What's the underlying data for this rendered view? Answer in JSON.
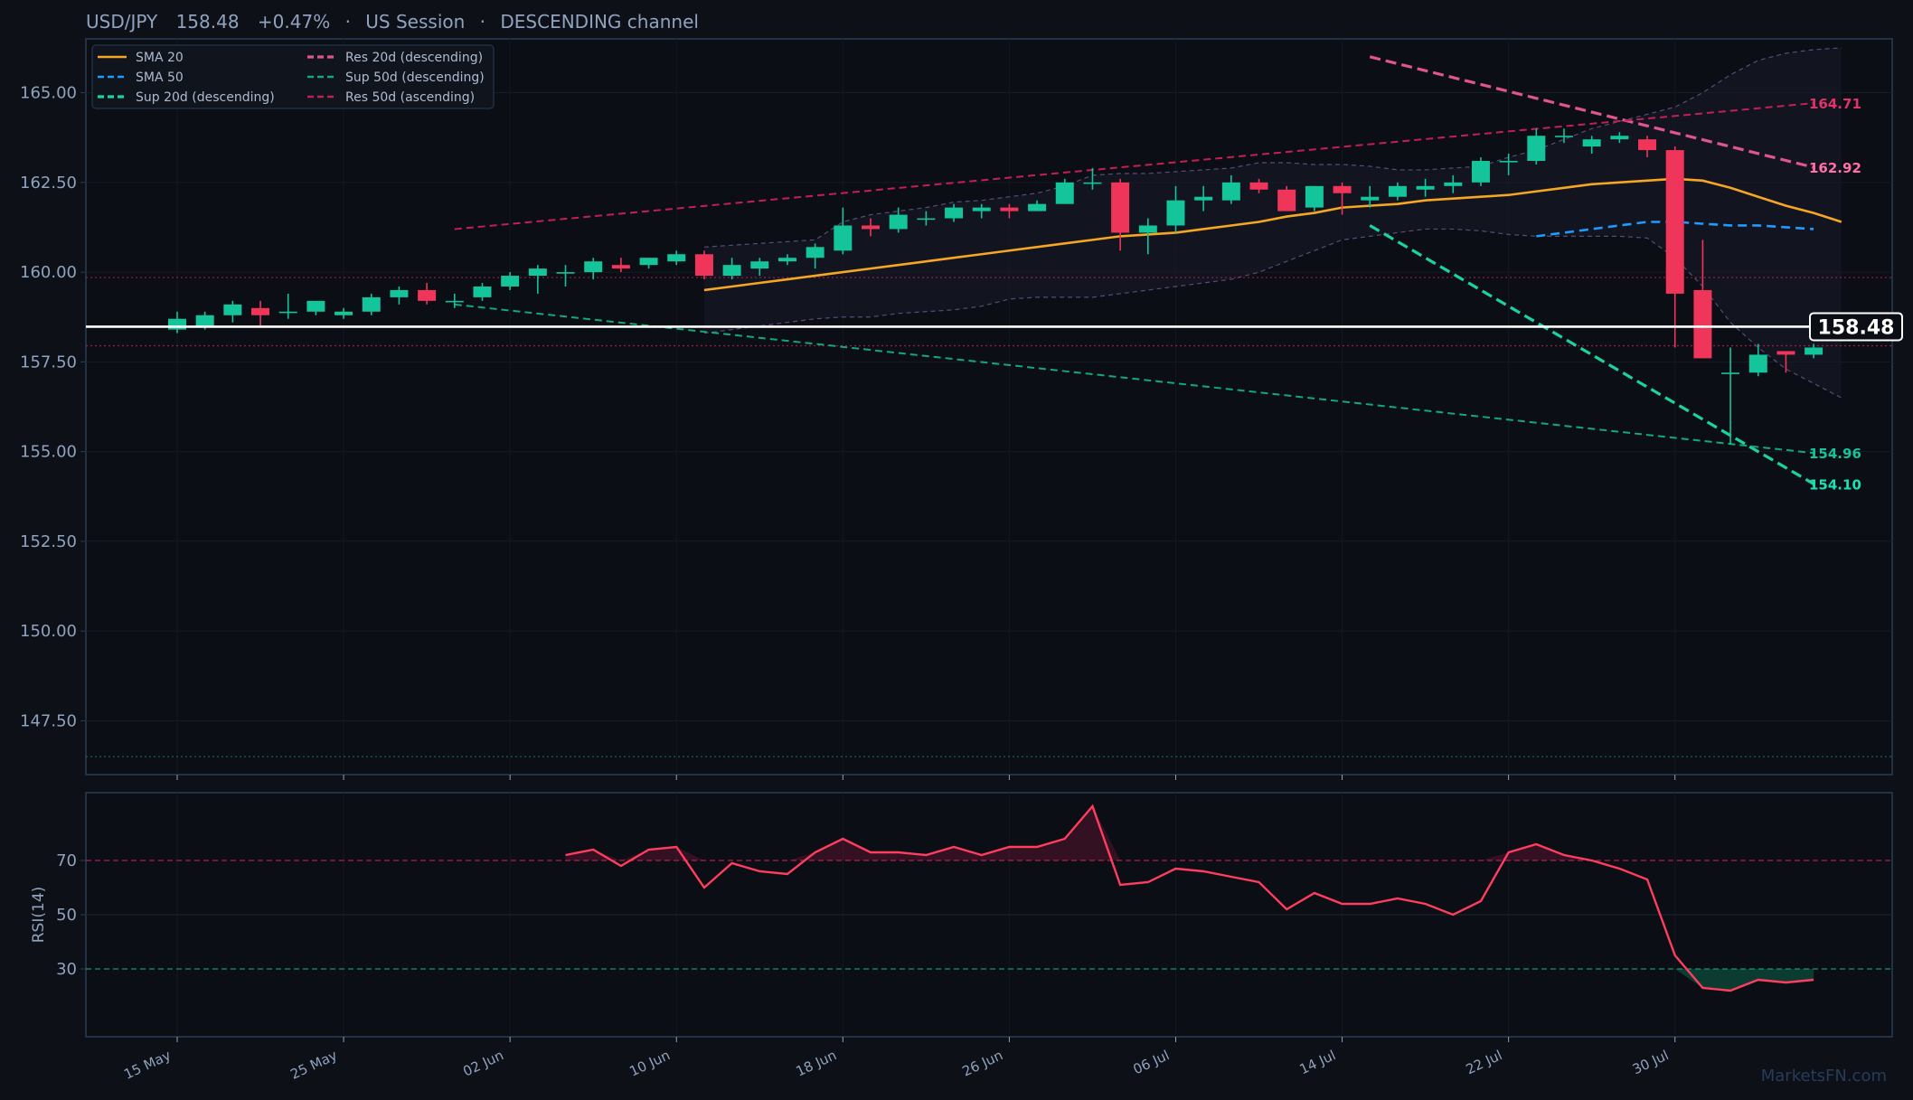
{
  "header": {
    "symbol": "USD/JPY",
    "price": "158.48",
    "change": "+0.47%",
    "session": "US Session",
    "channel": "DESCENDING channel",
    "separator": "·"
  },
  "watermark": "MarketsFN.com",
  "colors": {
    "background": "#0d1017",
    "panel": "#0b0e14",
    "axis": "#2a3d55",
    "text": "#8fa3bf",
    "up": "#14c49a",
    "down": "#f0355a",
    "sma20": "#f5a623",
    "sma50": "#1e9bff",
    "sup20": "#19d3a2",
    "res20": "#e0558f",
    "sup50": "#12a877",
    "res50": "#c41f55",
    "price_line": "#ffffff",
    "rsi": "#ff3d5e"
  },
  "chart_data": [
    {
      "type": "candlestick",
      "x_labels": [
        "15 May",
        "25 May",
        "02 Jun",
        "10 Jun",
        "18 Jun",
        "26 Jun",
        "06 Jul",
        "14 Jul",
        "22 Jul",
        "30 Jul"
      ],
      "x_label_index": [
        0,
        6,
        12,
        18,
        24,
        30,
        36,
        42,
        48,
        54
      ],
      "ylim": [
        146.0,
        166.5
      ],
      "yticks": [
        "147.50",
        "150.00",
        "152.50",
        "155.00",
        "157.50",
        "160.00",
        "162.50",
        "165.00"
      ],
      "candles": [
        {
          "o": 158.4,
          "h": 158.9,
          "l": 158.3,
          "c": 158.7
        },
        {
          "o": 158.5,
          "h": 158.9,
          "l": 158.4,
          "c": 158.8
        },
        {
          "o": 158.8,
          "h": 159.2,
          "l": 158.6,
          "c": 159.1
        },
        {
          "o": 159.0,
          "h": 159.2,
          "l": 158.5,
          "c": 158.8
        },
        {
          "o": 158.9,
          "h": 159.4,
          "l": 158.7,
          "c": 158.9
        },
        {
          "o": 158.9,
          "h": 159.2,
          "l": 158.8,
          "c": 159.2
        },
        {
          "o": 158.8,
          "h": 159.0,
          "l": 158.7,
          "c": 158.9
        },
        {
          "o": 158.9,
          "h": 159.4,
          "l": 158.8,
          "c": 159.3
        },
        {
          "o": 159.3,
          "h": 159.6,
          "l": 159.1,
          "c": 159.5
        },
        {
          "o": 159.5,
          "h": 159.7,
          "l": 159.1,
          "c": 159.2
        },
        {
          "o": 159.2,
          "h": 159.4,
          "l": 159.0,
          "c": 159.2
        },
        {
          "o": 159.3,
          "h": 159.7,
          "l": 159.2,
          "c": 159.6
        },
        {
          "o": 159.6,
          "h": 160.0,
          "l": 159.5,
          "c": 159.9
        },
        {
          "o": 159.9,
          "h": 160.2,
          "l": 159.4,
          "c": 160.1
        },
        {
          "o": 160.0,
          "h": 160.2,
          "l": 159.6,
          "c": 160.0
        },
        {
          "o": 160.0,
          "h": 160.4,
          "l": 159.8,
          "c": 160.3
        },
        {
          "o": 160.2,
          "h": 160.4,
          "l": 160.0,
          "c": 160.1
        },
        {
          "o": 160.2,
          "h": 160.4,
          "l": 160.1,
          "c": 160.4
        },
        {
          "o": 160.3,
          "h": 160.6,
          "l": 160.2,
          "c": 160.5
        },
        {
          "o": 160.5,
          "h": 160.6,
          "l": 159.8,
          "c": 159.9
        },
        {
          "o": 159.9,
          "h": 160.4,
          "l": 159.8,
          "c": 160.2
        },
        {
          "o": 160.1,
          "h": 160.4,
          "l": 159.9,
          "c": 160.3
        },
        {
          "o": 160.3,
          "h": 160.5,
          "l": 160.2,
          "c": 160.4
        },
        {
          "o": 160.4,
          "h": 160.8,
          "l": 160.1,
          "c": 160.7
        },
        {
          "o": 160.6,
          "h": 161.8,
          "l": 160.5,
          "c": 161.3
        },
        {
          "o": 161.3,
          "h": 161.5,
          "l": 161.0,
          "c": 161.2
        },
        {
          "o": 161.2,
          "h": 161.8,
          "l": 161.1,
          "c": 161.6
        },
        {
          "o": 161.5,
          "h": 161.7,
          "l": 161.3,
          "c": 161.5
        },
        {
          "o": 161.5,
          "h": 161.9,
          "l": 161.4,
          "c": 161.8
        },
        {
          "o": 161.7,
          "h": 161.9,
          "l": 161.5,
          "c": 161.8
        },
        {
          "o": 161.8,
          "h": 161.9,
          "l": 161.5,
          "c": 161.7
        },
        {
          "o": 161.7,
          "h": 162.0,
          "l": 161.7,
          "c": 161.9
        },
        {
          "o": 161.9,
          "h": 162.6,
          "l": 161.9,
          "c": 162.5
        },
        {
          "o": 162.5,
          "h": 162.9,
          "l": 162.3,
          "c": 162.5
        },
        {
          "o": 162.5,
          "h": 162.6,
          "l": 160.6,
          "c": 161.1
        },
        {
          "o": 161.1,
          "h": 161.5,
          "l": 160.5,
          "c": 161.3
        },
        {
          "o": 161.3,
          "h": 162.4,
          "l": 161.1,
          "c": 162.0
        },
        {
          "o": 162.0,
          "h": 162.4,
          "l": 161.7,
          "c": 162.1
        },
        {
          "o": 162.0,
          "h": 162.7,
          "l": 161.9,
          "c": 162.5
        },
        {
          "o": 162.5,
          "h": 162.6,
          "l": 162.2,
          "c": 162.3
        },
        {
          "o": 162.3,
          "h": 162.4,
          "l": 161.7,
          "c": 161.7
        },
        {
          "o": 161.8,
          "h": 162.4,
          "l": 161.7,
          "c": 162.4
        },
        {
          "o": 162.4,
          "h": 162.5,
          "l": 161.6,
          "c": 162.2
        },
        {
          "o": 162.0,
          "h": 162.4,
          "l": 161.8,
          "c": 162.1
        },
        {
          "o": 162.1,
          "h": 162.5,
          "l": 162.0,
          "c": 162.4
        },
        {
          "o": 162.3,
          "h": 162.6,
          "l": 162.1,
          "c": 162.4
        },
        {
          "o": 162.4,
          "h": 162.7,
          "l": 162.2,
          "c": 162.5
        },
        {
          "o": 162.5,
          "h": 163.2,
          "l": 162.4,
          "c": 163.1
        },
        {
          "o": 163.1,
          "h": 163.3,
          "l": 162.7,
          "c": 163.1
        },
        {
          "o": 163.1,
          "h": 164.0,
          "l": 163.0,
          "c": 163.8
        },
        {
          "o": 163.8,
          "h": 164.0,
          "l": 163.6,
          "c": 163.8
        },
        {
          "o": 163.5,
          "h": 163.8,
          "l": 163.3,
          "c": 163.7
        },
        {
          "o": 163.7,
          "h": 163.9,
          "l": 163.6,
          "c": 163.8
        },
        {
          "o": 163.7,
          "h": 163.8,
          "l": 163.2,
          "c": 163.4
        },
        {
          "o": 163.4,
          "h": 163.5,
          "l": 157.9,
          "c": 159.4
        },
        {
          "o": 159.5,
          "h": 160.9,
          "l": 157.6,
          "c": 157.6
        },
        {
          "o": 157.2,
          "h": 157.9,
          "l": 155.2,
          "c": 157.2
        },
        {
          "o": 157.2,
          "h": 158.0,
          "l": 157.1,
          "c": 157.7
        },
        {
          "o": 157.8,
          "h": 157.8,
          "l": 157.2,
          "c": 157.7
        },
        {
          "o": 157.7,
          "h": 158.0,
          "l": 157.6,
          "c": 157.9
        }
      ],
      "series": [
        {
          "name": "SMA 20",
          "style": "solid",
          "x_start": 19,
          "values": [
            159.5,
            159.6,
            159.7,
            159.8,
            159.9,
            160.0,
            160.1,
            160.2,
            160.3,
            160.4,
            160.5,
            160.6,
            160.7,
            160.8,
            160.9,
            161.0,
            161.05,
            161.1,
            161.2,
            161.3,
            161.4,
            161.55,
            161.65,
            161.8,
            161.85,
            161.9,
            162.0,
            162.05,
            162.1,
            162.15,
            162.25,
            162.35,
            162.45,
            162.5,
            162.55,
            162.6,
            162.55,
            162.35,
            162.1,
            161.85,
            161.65,
            161.4
          ]
        },
        {
          "name": "SMA 50",
          "style": "dashed",
          "x_start": 49,
          "values": [
            161.0,
            161.1,
            161.2,
            161.3,
            161.4,
            161.4,
            161.35,
            161.3,
            161.3,
            161.25,
            161.2
          ]
        },
        {
          "name": "Sup 20d (descending)",
          "style": "dashed-bold",
          "x_start": 43,
          "values": [
            161.3,
            154.1
          ],
          "x_end": 59
        },
        {
          "name": "Sup 50d (descending)",
          "style": "dashed",
          "x_start": 10,
          "values": [
            159.1,
            154.96
          ],
          "x_end": 59
        },
        {
          "name": "Res 20d (descending)",
          "style": "dashed-bold",
          "x_start": 43,
          "values": [
            166.0,
            162.92
          ],
          "x_end": 59
        },
        {
          "name": "Res 50d (ascending)",
          "style": "dashed",
          "x_start": 10,
          "values": [
            161.2,
            164.71
          ],
          "x_end": 59
        }
      ],
      "bollinger": {
        "x_start": 19,
        "upper": [
          160.7,
          160.75,
          160.8,
          160.85,
          160.9,
          161.4,
          161.6,
          161.7,
          161.8,
          161.95,
          162.0,
          162.1,
          162.2,
          162.4,
          162.7,
          162.75,
          162.75,
          162.8,
          162.85,
          162.9,
          163.05,
          163.05,
          163.0,
          163.0,
          162.95,
          162.85,
          162.85,
          162.9,
          162.95,
          163.2,
          163.4,
          163.7,
          164.0,
          164.2,
          164.4,
          164.6,
          165.0,
          165.5,
          165.9,
          166.1,
          166.2,
          166.25
        ],
        "lower": [
          158.3,
          158.4,
          158.5,
          158.6,
          158.7,
          158.75,
          158.75,
          158.85,
          158.9,
          158.95,
          159.05,
          159.25,
          159.3,
          159.3,
          159.3,
          159.4,
          159.5,
          159.6,
          159.7,
          159.8,
          160.0,
          160.3,
          160.6,
          160.9,
          161.0,
          161.1,
          161.2,
          161.2,
          161.15,
          161.05,
          161.0,
          161.0,
          161.0,
          161.0,
          160.95,
          160.4,
          159.6,
          158.6,
          157.9,
          157.3,
          156.9,
          156.5
        ]
      },
      "hlines": [
        {
          "y": 159.85,
          "style": "dotted",
          "color": "#c41f55"
        },
        {
          "y": 157.95,
          "style": "dotted",
          "color": "#c41f55"
        },
        {
          "y": 146.5,
          "style": "dotted",
          "color": "#1f7a55"
        }
      ],
      "price_line": 158.48,
      "price_label": "158.48",
      "end_labels": [
        {
          "value": 164.71,
          "text": "164.71",
          "color": "#e0336a"
        },
        {
          "value": 162.92,
          "text": "162.92",
          "color": "#ff6fa8"
        },
        {
          "value": 154.96,
          "text": "154.96",
          "color": "#14c49a"
        },
        {
          "value": 154.1,
          "text": "154.10",
          "color": "#19e3b2"
        }
      ],
      "legend": {
        "placement": "top-left",
        "entries": [
          {
            "label": "SMA 20",
            "color": "#f5a623",
            "style": "solid"
          },
          {
            "label": "SMA 50",
            "color": "#1e9bff",
            "style": "dashed"
          },
          {
            "label": "Sup 20d (descending)",
            "color": "#19d3a2",
            "style": "dashed-bold"
          },
          {
            "label": "Res 20d (descending)",
            "color": "#e0558f",
            "style": "dashed-bold"
          },
          {
            "label": "Sup 50d (descending)",
            "color": "#12a877",
            "style": "dashed"
          },
          {
            "label": "Res 50d (ascending)",
            "color": "#c41f55",
            "style": "dashed"
          }
        ]
      }
    },
    {
      "type": "line",
      "ylabel": "RSI(14)",
      "ylim": [
        5,
        95
      ],
      "yticks": [
        "30",
        "50",
        "70"
      ],
      "overbought": 70,
      "oversold": 30,
      "x_start": 14,
      "values": [
        72,
        74,
        68,
        74,
        75,
        60,
        69,
        66,
        65,
        73,
        78,
        73,
        73,
        72,
        75,
        72,
        75,
        75,
        78,
        90,
        61,
        62,
        67,
        66,
        64,
        62,
        52,
        58,
        54,
        54,
        56,
        54,
        50,
        55,
        73,
        76,
        72,
        70,
        67,
        63,
        35,
        23,
        22,
        26,
        25,
        26
      ]
    }
  ]
}
